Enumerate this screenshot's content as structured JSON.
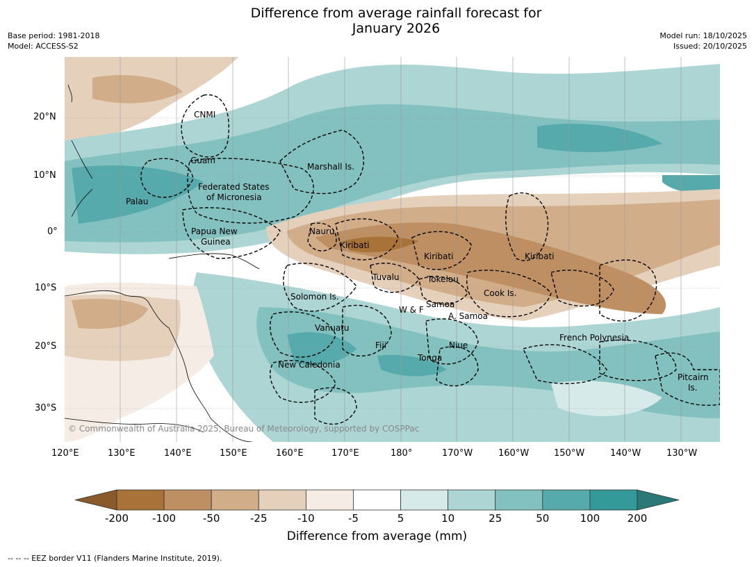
{
  "header": {
    "title_line1": "Difference from average rainfall forecast for",
    "title_line2": "January 2026",
    "base_period": "Base period: 1981-2018",
    "model": "Model: ACCESS-S2",
    "model_run": "Model run: 18/10/2025",
    "issued": "Issued: 20/10/2025"
  },
  "map": {
    "lon_ticks": [
      "120°E",
      "130°E",
      "140°E",
      "150°E",
      "160°E",
      "170°E",
      "180°",
      "170°W",
      "160°W",
      "150°W",
      "140°W",
      "130°W"
    ],
    "lat_ticks": [
      "20°N",
      "10°N",
      "0°",
      "10°S",
      "20°S",
      "30°S"
    ],
    "regions": [
      {
        "name": "CNMI"
      },
      {
        "name": "Guam"
      },
      {
        "name": "Marshall Is."
      },
      {
        "name": "Federated States"
      },
      {
        "name": "of Micronesia"
      },
      {
        "name": "Palau"
      },
      {
        "name": "Papua New"
      },
      {
        "name": "Guinea"
      },
      {
        "name": "Nauru"
      },
      {
        "name": "Kiribati"
      },
      {
        "name": "Kiribati"
      },
      {
        "name": "Kiribati"
      },
      {
        "name": "Tuvalu"
      },
      {
        "name": "Tokelau"
      },
      {
        "name": "Solomon Is."
      },
      {
        "name": "Samoa"
      },
      {
        "name": "W & F"
      },
      {
        "name": "A. Samoa"
      },
      {
        "name": "Cook Is."
      },
      {
        "name": "Vanuatu"
      },
      {
        "name": "Fiji"
      },
      {
        "name": "Niue"
      },
      {
        "name": "French Polynesia"
      },
      {
        "name": "Tonga"
      },
      {
        "name": "New Caledonia"
      },
      {
        "name": "Pitcairn"
      },
      {
        "name": "Is."
      }
    ],
    "copyright": "© Commonwealth of Australia 2025, Bureau of Meteorology, supported by COSPPac"
  },
  "colorbar": {
    "tick_labels": [
      "-200",
      "-100",
      "-50",
      "-25",
      "-10",
      "-5",
      "5",
      "10",
      "25",
      "50",
      "100",
      "200"
    ],
    "colors": [
      "#8b5a2b",
      "#a87238",
      "#bd8f62",
      "#d1ad8a",
      "#e5d0bc",
      "#f5ece5",
      "#ffffff",
      "#d5eae9",
      "#acd5d4",
      "#82c1c0",
      "#57aaab",
      "#339999",
      "#2a7878"
    ],
    "label": "Difference from average (mm)"
  },
  "footnote": "-- -- -- EEZ border V11 (Flanders Marine Institute, 2019)."
}
